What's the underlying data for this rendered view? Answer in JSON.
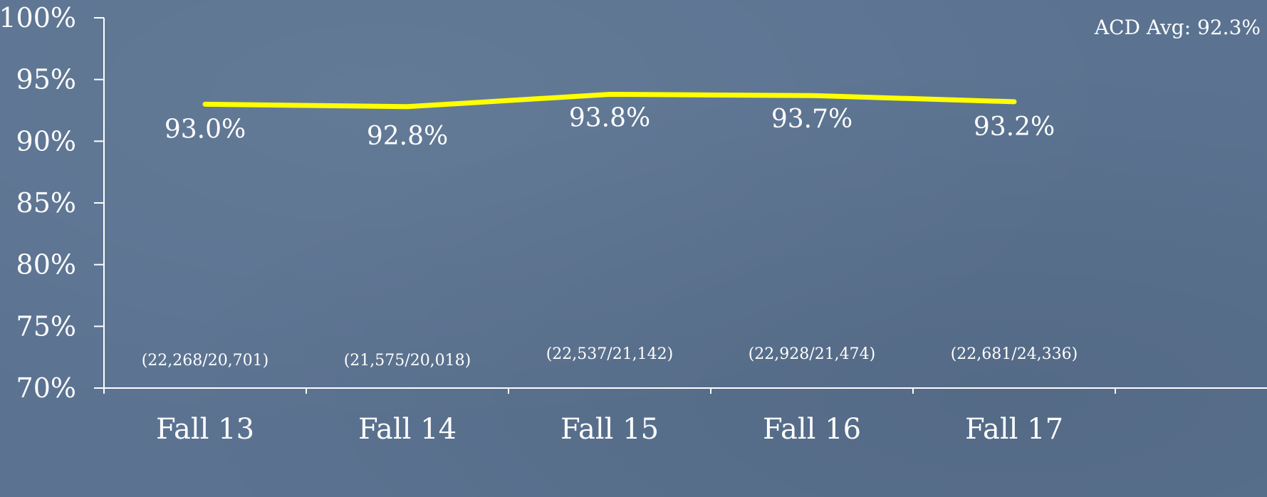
{
  "chart_data": {
    "type": "line",
    "categories": [
      "Fall 13",
      "Fall 14",
      "Fall 15",
      "Fall 16",
      "Fall 17"
    ],
    "series": [
      {
        "values": [
          93.0,
          92.8,
          93.8,
          93.7,
          93.2
        ],
        "color": "#ffff00"
      }
    ],
    "data_labels": [
      "93.0%",
      "92.8%",
      "93.8%",
      "93.7%",
      "93.2%"
    ],
    "count_labels": [
      "(22,268/20,701)",
      "(21,575/20,018)",
      "(22,537/21,142)",
      "(22,928/21,474)",
      "(22,681/24,336)"
    ],
    "y_ticks": [
      70,
      75,
      80,
      85,
      90,
      95,
      100
    ],
    "y_tick_labels": [
      "70%",
      "75%",
      "80%",
      "85%",
      "90%",
      "95%",
      "100%"
    ],
    "ylim": [
      70,
      100
    ],
    "grid": false,
    "annotation": "ACD Avg:  92.3%",
    "title": "",
    "xlabel": "",
    "ylabel": ""
  }
}
